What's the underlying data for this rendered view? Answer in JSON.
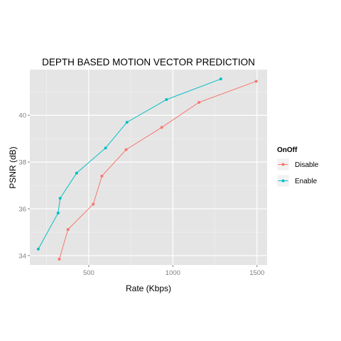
{
  "chart_data": {
    "type": "line",
    "title": "DEPTH BASED MOTION VECTOR PREDICTION",
    "xlabel": "Rate (Kbps)",
    "ylabel": "PSNR (dB)",
    "xlim": [
      150,
      1560
    ],
    "ylim": [
      33.6,
      41.95
    ],
    "xticks": [
      500,
      1000,
      1500
    ],
    "yticks": [
      34,
      36,
      38,
      40
    ],
    "grid": true,
    "legend": {
      "title": "OnOff",
      "position": "right"
    },
    "series": [
      {
        "name": "Disable",
        "color": "#F8766D",
        "x": [
          325,
          377,
          527,
          578,
          722,
          934,
          1155,
          1495
        ],
        "y": [
          33.85,
          35.12,
          36.2,
          37.4,
          38.53,
          39.48,
          40.55,
          41.45
        ]
      },
      {
        "name": "Enable",
        "color": "#00BFC4",
        "x": [
          200,
          318,
          330,
          428,
          600,
          727,
          962,
          1285
        ],
        "y": [
          34.28,
          35.82,
          36.45,
          37.53,
          38.6,
          39.7,
          40.67,
          41.55
        ]
      }
    ]
  }
}
